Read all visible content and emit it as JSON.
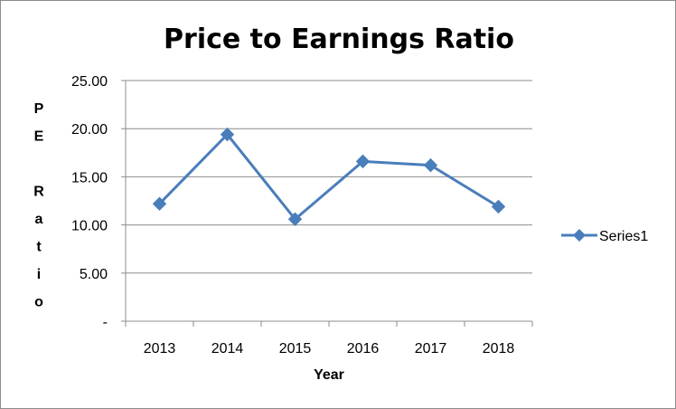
{
  "chart_data": {
    "type": "line",
    "title": "Price to Earnings Ratio",
    "xlabel": "Year",
    "ylabel": "P E R a t i o",
    "ylabel_chars": [
      "P",
      "E",
      "",
      "R",
      "a",
      "t",
      "i",
      "o"
    ],
    "categories": [
      "2013",
      "2014",
      "2015",
      "2016",
      "2017",
      "2018"
    ],
    "series": [
      {
        "name": "Series1",
        "values": [
          12.2,
          19.4,
          10.6,
          16.6,
          16.2,
          11.9
        ],
        "color": "#4a7ebb"
      }
    ],
    "ylim": [
      0,
      25
    ],
    "yticks": [
      0,
      5,
      10,
      15,
      20,
      25
    ],
    "ytick_labels": [
      "-",
      "5.00",
      "10.00",
      "15.00",
      "20.00",
      "25.00"
    ],
    "grid": true,
    "legend": "right",
    "marker": "diamond"
  }
}
